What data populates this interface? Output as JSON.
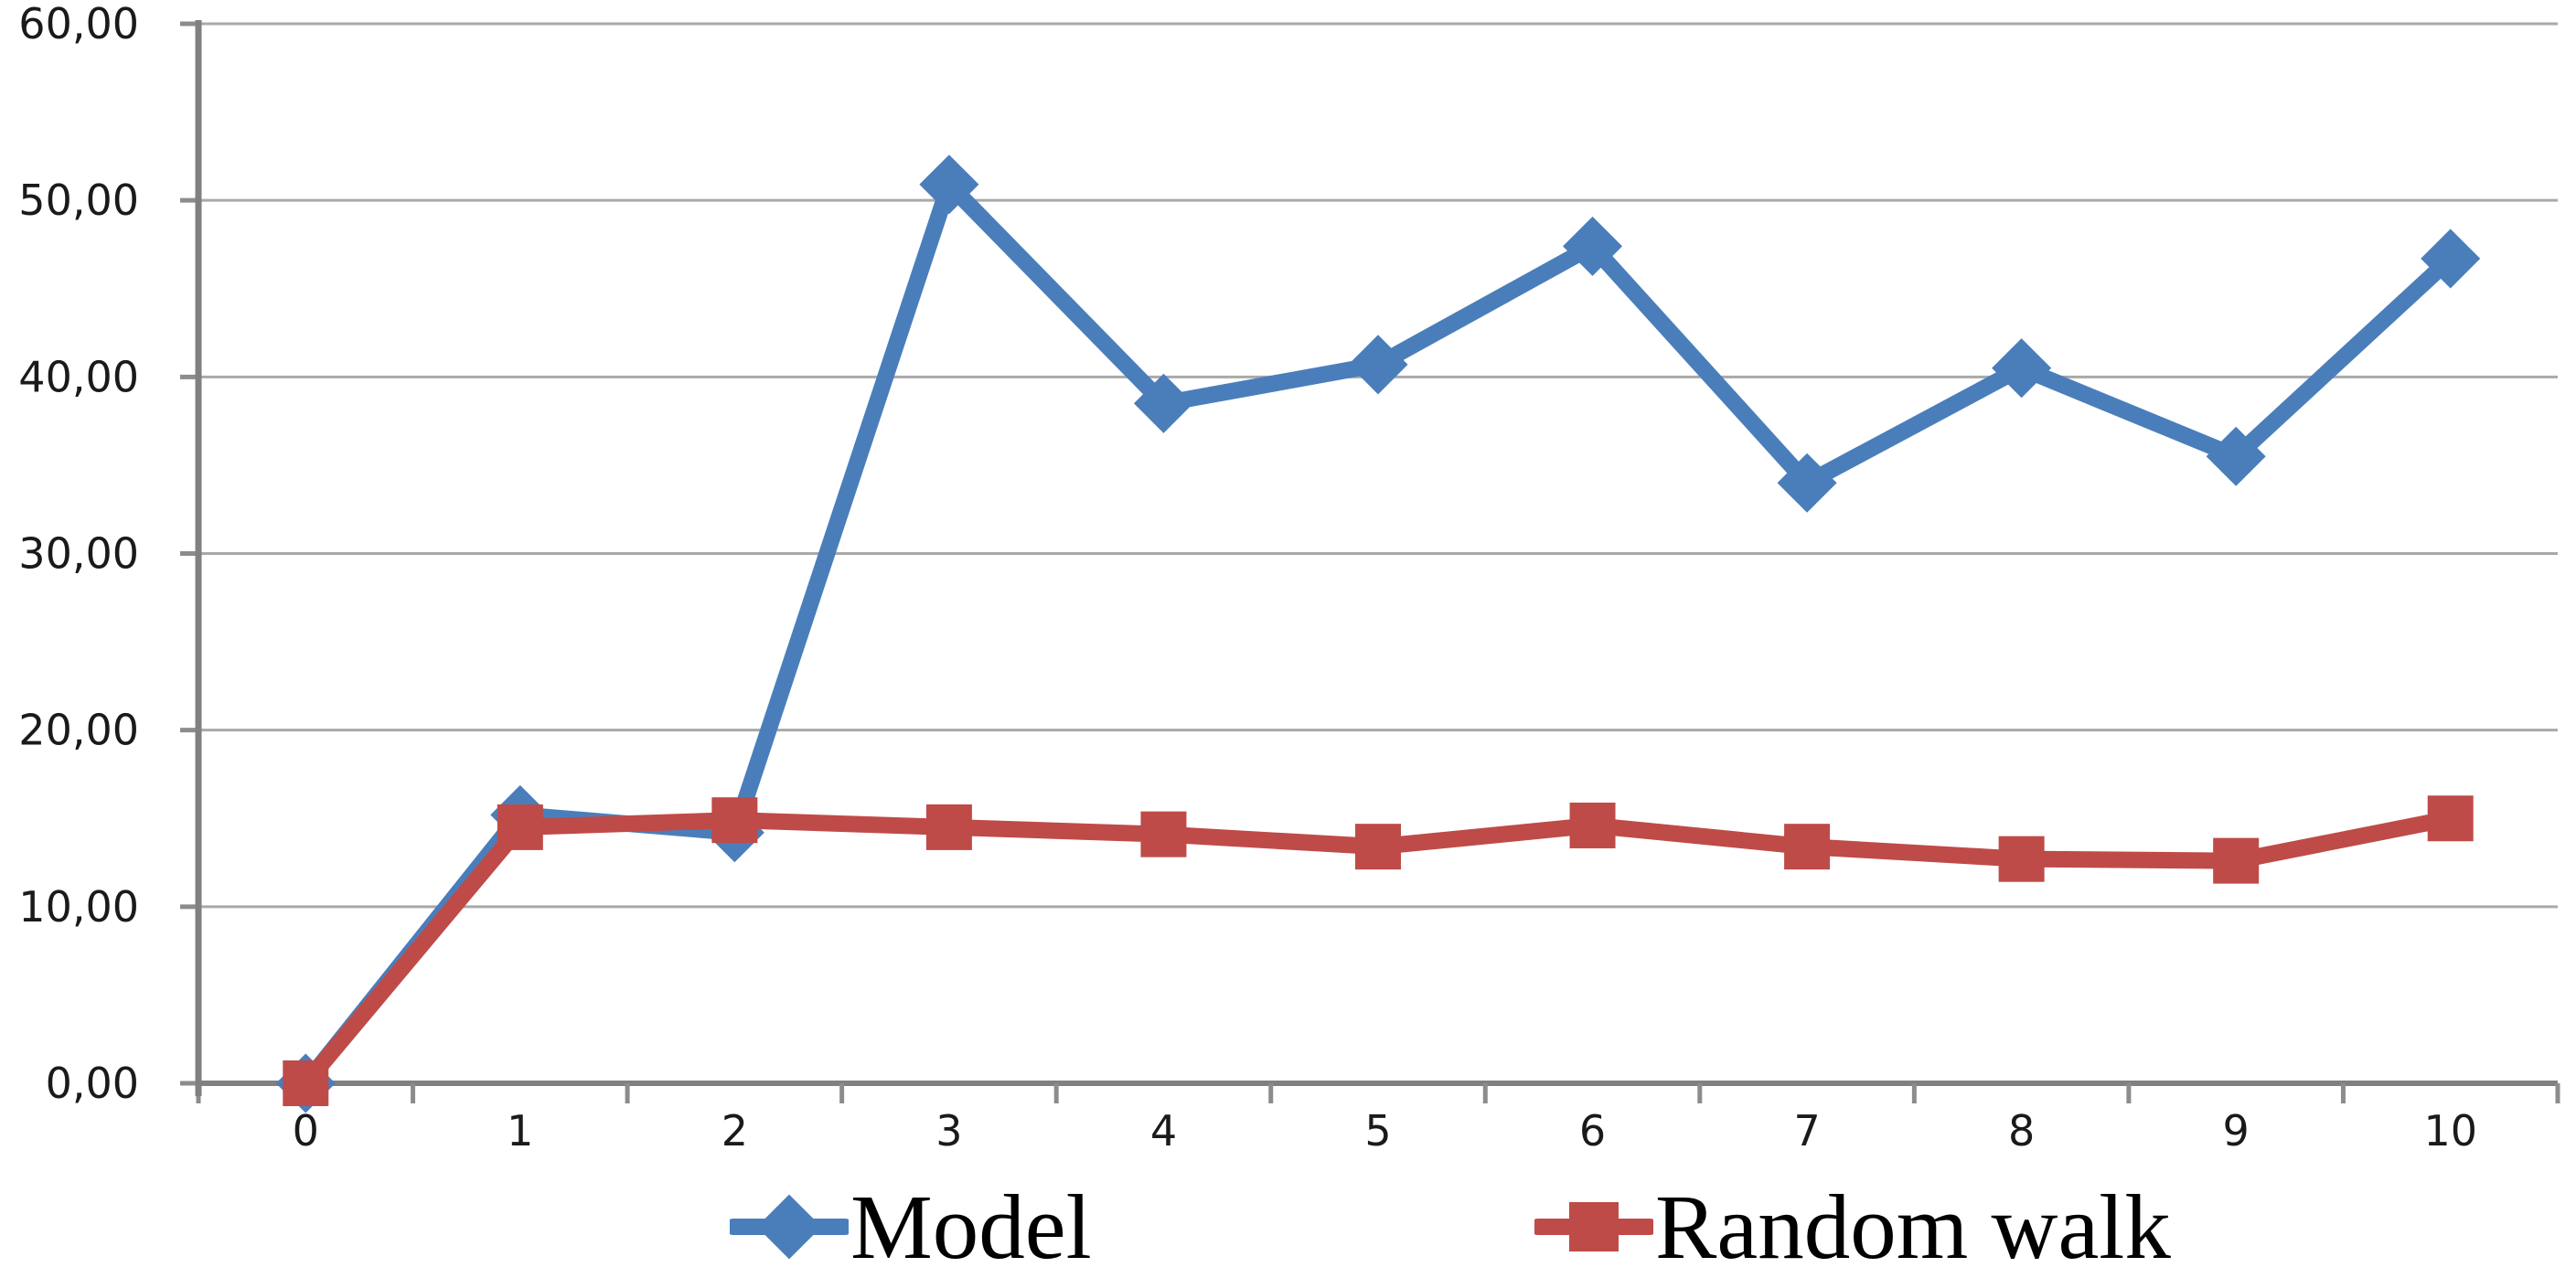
{
  "chart_data": {
    "type": "line",
    "title": "",
    "xlabel": "",
    "ylabel": "",
    "categories": [
      "0",
      "1",
      "2",
      "3",
      "4",
      "5",
      "6",
      "7",
      "8",
      "9",
      "10"
    ],
    "series": [
      {
        "name": "Model",
        "color": "#4A7EBB",
        "marker": "diamond",
        "values": [
          0.0,
          15.2,
          14.2,
          50.9,
          38.5,
          40.7,
          47.4,
          34.0,
          40.5,
          35.5,
          46.7
        ]
      },
      {
        "name": "Random walk",
        "color": "#BE4B48",
        "marker": "square",
        "values": [
          0.0,
          14.5,
          14.9,
          14.5,
          14.1,
          13.4,
          14.6,
          13.4,
          12.7,
          12.6,
          15.0
        ]
      }
    ],
    "ylim": [
      0,
      60
    ],
    "ytick_step": 10,
    "ytick_labels": [
      "0,00",
      "10,00",
      "20,00",
      "30,00",
      "40,00",
      "50,00",
      "60,00"
    ],
    "decimal_separator": ",",
    "grid": true,
    "legend_position": "bottom",
    "colors": {
      "gridline": "#A9A9A9",
      "axis": "#808080",
      "tick": "#8C8C8C",
      "axis_text": "#1A1A1A",
      "background": "#FFFFFF"
    }
  },
  "legend": {
    "items": [
      {
        "label": "Model"
      },
      {
        "label": "Random walk"
      }
    ]
  }
}
